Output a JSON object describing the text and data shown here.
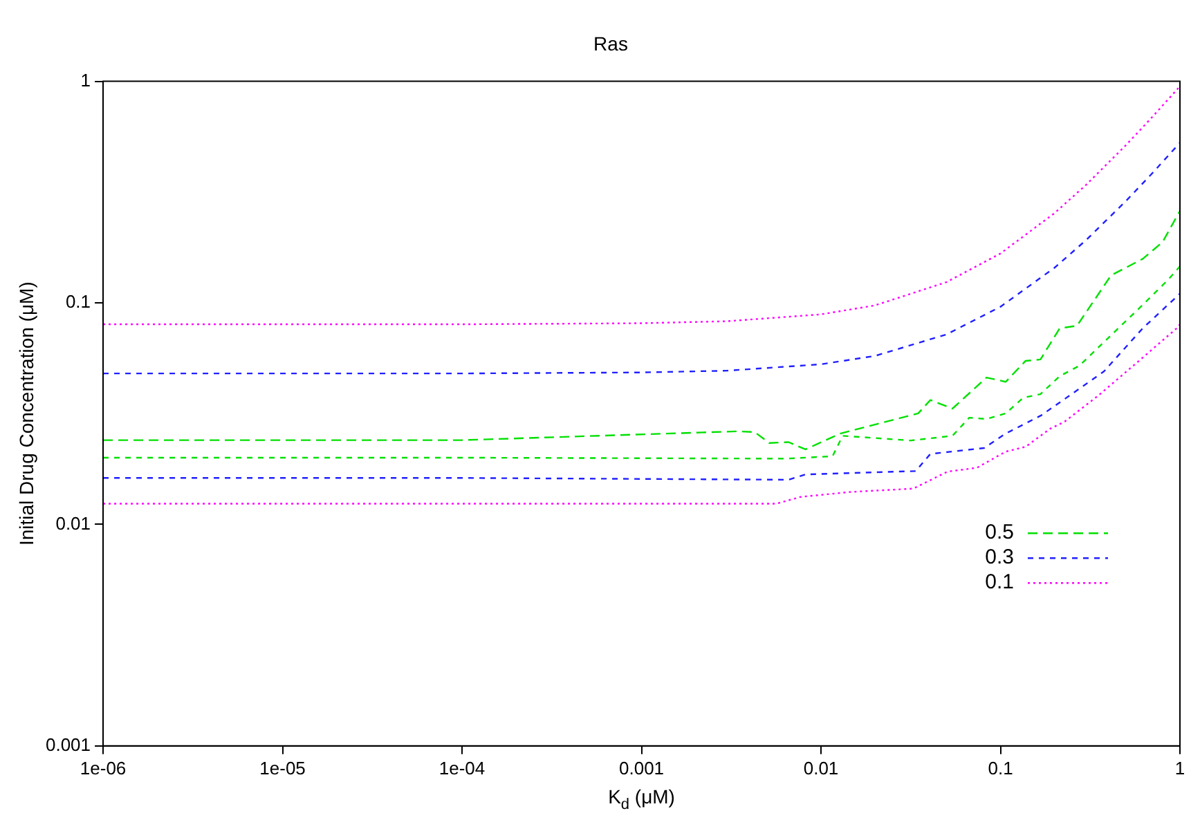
{
  "chart_data": {
    "type": "line",
    "title": "Ras",
    "xlabel": "K$_{d}$ (μM)",
    "ylabel": "Initial Drug Concentration (μM)",
    "log": "xy",
    "xlim": [
      1e-06,
      1
    ],
    "ylim": [
      0.001,
      1
    ],
    "xticks": [
      {
        "value": 1e-06,
        "label": "1e-06"
      },
      {
        "value": 1e-05,
        "label": "1e-05"
      },
      {
        "value": 0.0001,
        "label": "1e-04"
      },
      0.001,
      0.01,
      0.1,
      1
    ],
    "yticks": [
      0.001,
      0.01,
      0.1,
      1
    ],
    "legend": "right",
    "marker": "none",
    "series": [
      {
        "name": "0.5",
        "color": "#00e000",
        "line_style": "dashed",
        "x": [
          1e-06,
          0.0001,
          0.00343,
          0.00427,
          0.00515,
          0.0066,
          0.0082,
          0.0128,
          0.0348,
          0.0407,
          0.054,
          0.0836,
          0.107,
          0.138,
          0.167,
          0.214,
          0.267,
          0.413,
          0.621,
          0.8,
          1
        ],
        "values": [
          0.024,
          0.024,
          0.0263,
          0.0261,
          0.0233,
          0.0235,
          0.0218,
          0.0257,
          0.0317,
          0.0364,
          0.0333,
          0.046,
          0.044,
          0.0547,
          0.0555,
          0.0768,
          0.0788,
          0.133,
          0.158,
          0.188,
          0.26
        ]
      },
      {
        "color": "#00e000",
        "line_style": "dashed",
        "x": [
          1e-06,
          0.0001,
          0.0064,
          0.0116,
          0.0132,
          0.0317,
          0.054,
          0.067,
          0.0836,
          0.107,
          0.134,
          0.167,
          0.214,
          0.275,
          0.454,
          0.621,
          0.85,
          1
        ],
        "values": [
          0.02,
          0.02,
          0.0198,
          0.0203,
          0.0251,
          0.0239,
          0.0251,
          0.0303,
          0.0299,
          0.0317,
          0.0373,
          0.0387,
          0.0467,
          0.052,
          0.0768,
          0.098,
          0.126,
          0.146
        ]
      },
      {
        "name": "0.3",
        "color": "#2020ff",
        "line_style": "dashed",
        "x": [
          1e-06,
          0.0001,
          0.001,
          0.003,
          0.01,
          0.02,
          0.05,
          0.1,
          0.2,
          0.3,
          0.5,
          0.7,
          1
        ],
        "values": [
          0.048,
          0.048,
          0.0485,
          0.0494,
          0.0528,
          0.0576,
          0.072,
          0.096,
          0.144,
          0.192,
          0.288,
          0.384,
          0.528
        ]
      },
      {
        "color": "#2020ff",
        "line_style": "dashed",
        "x": [
          1e-06,
          0.0001,
          0.0066,
          0.0082,
          0.0337,
          0.0407,
          0.081,
          0.107,
          0.167,
          0.228,
          0.377,
          0.621,
          1
        ],
        "values": [
          0.0162,
          0.0162,
          0.0159,
          0.0168,
          0.0174,
          0.0208,
          0.0221,
          0.0257,
          0.0309,
          0.0368,
          0.049,
          0.0768,
          0.11
        ]
      },
      {
        "name": "0.1",
        "color": "#ff00ff",
        "line_style": "dotted",
        "x": [
          1e-06,
          0.0001,
          0.001,
          0.003,
          0.01,
          0.02,
          0.05,
          0.1,
          0.2,
          0.3,
          0.5,
          0.7,
          1
        ],
        "values": [
          0.08,
          0.08,
          0.0809,
          0.0826,
          0.0887,
          0.0974,
          0.124,
          0.167,
          0.254,
          0.341,
          0.515,
          0.689,
          0.95
        ]
      },
      {
        "color": "#ff00ff",
        "line_style": "dotted",
        "x": [
          1e-06,
          0.0001,
          0.00565,
          0.0077,
          0.0145,
          0.0327,
          0.0507,
          0.0738,
          0.107,
          0.138,
          0.189,
          0.228,
          0.353,
          0.583,
          0.96,
          1
        ],
        "values": [
          0.0124,
          0.0124,
          0.0124,
          0.0133,
          0.014,
          0.0145,
          0.0173,
          0.018,
          0.0213,
          0.0224,
          0.027,
          0.0291,
          0.0383,
          0.0542,
          0.0768,
          0.08
        ]
      }
    ]
  }
}
